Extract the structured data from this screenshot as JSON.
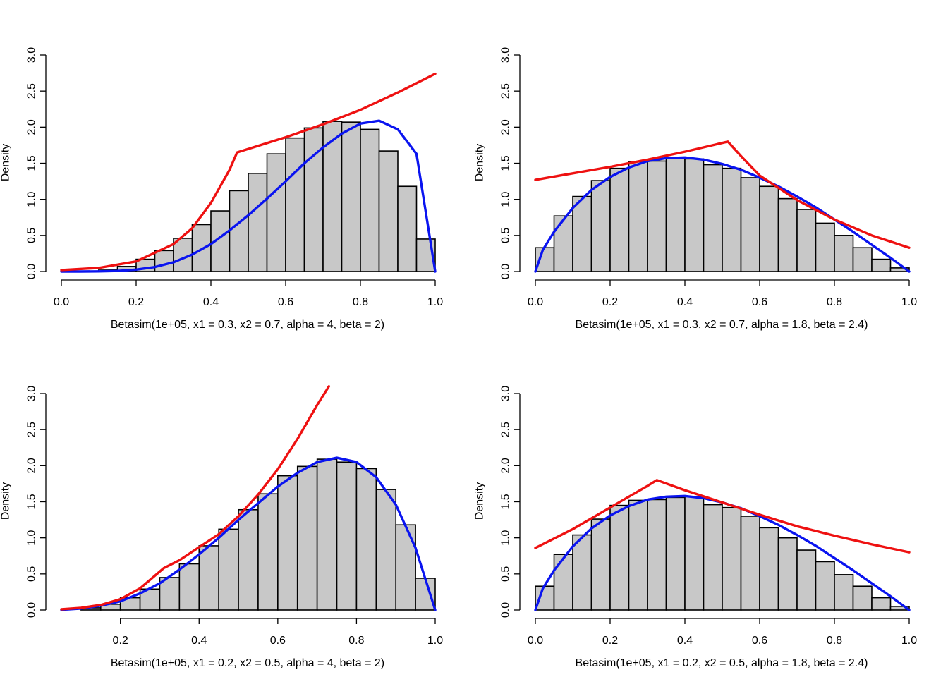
{
  "colors": {
    "bar_fill": "#c8c8c8",
    "bar_stroke": "#000000",
    "envelope_line": "#ee1111",
    "density_line": "#0a14f0"
  },
  "chart_data": [
    {
      "type": "bar",
      "panel": "top-left",
      "xlabel": "Betasim(1e+05, x1 = 0.3, x2 = 0.7, alpha = 4, beta = 2)",
      "ylabel": "Density",
      "xlim": [
        0,
        1
      ],
      "ylim": [
        0,
        3
      ],
      "x_ticks": [
        "0.0",
        "0.2",
        "0.4",
        "0.6",
        "0.8",
        "1.0"
      ],
      "y_ticks": [
        "0.0",
        "0.5",
        "1.0",
        "1.5",
        "2.0",
        "2.5",
        "3.0"
      ],
      "bin_width": 0.05,
      "bin_starts": [
        0.0,
        0.05,
        0.1,
        0.15,
        0.2,
        0.25,
        0.3,
        0.35,
        0.4,
        0.45,
        0.5,
        0.55,
        0.6,
        0.65,
        0.7,
        0.75,
        0.8,
        0.85,
        0.9,
        0.95
      ],
      "values": [
        0.0,
        0.0,
        0.03,
        0.07,
        0.17,
        0.29,
        0.46,
        0.65,
        0.84,
        1.12,
        1.36,
        1.63,
        1.85,
        1.99,
        2.08,
        2.07,
        1.97,
        1.67,
        1.18,
        0.45
      ],
      "series": [
        {
          "role": "density",
          "x": [
            0,
            0.05,
            0.1,
            0.15,
            0.2,
            0.25,
            0.3,
            0.35,
            0.4,
            0.45,
            0.5,
            0.55,
            0.6,
            0.65,
            0.7,
            0.75,
            0.8,
            0.85,
            0.9,
            0.95,
            1.0
          ],
          "y": [
            0,
            0.0001,
            0.002,
            0.008,
            0.026,
            0.062,
            0.128,
            0.235,
            0.38,
            0.57,
            0.78,
            1.01,
            1.25,
            1.5,
            1.72,
            1.91,
            2.05,
            2.09,
            1.97,
            1.63,
            0.0
          ]
        },
        {
          "role": "envelope",
          "x": [
            0,
            0.1,
            0.2,
            0.3,
            0.35,
            0.4,
            0.45,
            0.47,
            0.55,
            0.6,
            0.7,
            0.8,
            0.9,
            1.0
          ],
          "y": [
            0.02,
            0.05,
            0.14,
            0.38,
            0.6,
            0.95,
            1.41,
            1.65,
            1.78,
            1.86,
            2.04,
            2.24,
            2.48,
            2.74
          ]
        }
      ]
    },
    {
      "type": "bar",
      "panel": "top-right",
      "xlabel": "Betasim(1e+05, x1 = 0.3, x2 = 0.7, alpha = 1.8, beta = 2.4)",
      "ylabel": "Density",
      "xlim": [
        0,
        1
      ],
      "ylim": [
        0,
        3
      ],
      "x_ticks": [
        "0.0",
        "0.2",
        "0.4",
        "0.6",
        "0.8",
        "1.0"
      ],
      "y_ticks": [
        "0.0",
        "0.5",
        "1.0",
        "1.5",
        "2.0",
        "2.5",
        "3.0"
      ],
      "bin_width": 0.05,
      "bin_starts": [
        0.0,
        0.05,
        0.1,
        0.15,
        0.2,
        0.25,
        0.3,
        0.35,
        0.4,
        0.45,
        0.5,
        0.55,
        0.6,
        0.65,
        0.7,
        0.75,
        0.8,
        0.85,
        0.9,
        0.95
      ],
      "values": [
        0.33,
        0.77,
        1.04,
        1.26,
        1.43,
        1.52,
        1.53,
        1.58,
        1.56,
        1.48,
        1.43,
        1.3,
        1.18,
        1.01,
        0.86,
        0.67,
        0.5,
        0.33,
        0.17,
        0.05
      ],
      "series": [
        {
          "role": "density",
          "x": [
            0,
            0.02,
            0.05,
            0.1,
            0.15,
            0.2,
            0.25,
            0.3,
            0.35,
            0.4,
            0.45,
            0.5,
            0.55,
            0.6,
            0.65,
            0.7,
            0.75,
            0.8,
            0.85,
            0.9,
            0.95,
            1.0
          ],
          "y": [
            0,
            0.3,
            0.55,
            0.88,
            1.13,
            1.31,
            1.44,
            1.53,
            1.57,
            1.58,
            1.55,
            1.49,
            1.41,
            1.3,
            1.18,
            1.04,
            0.89,
            0.72,
            0.55,
            0.37,
            0.19,
            0.0
          ]
        },
        {
          "role": "envelope",
          "x": [
            0,
            0.1,
            0.2,
            0.3,
            0.4,
            0.515,
            0.55,
            0.6,
            0.7,
            0.8,
            0.9,
            1.0
          ],
          "y": [
            1.27,
            1.36,
            1.45,
            1.55,
            1.66,
            1.8,
            1.6,
            1.33,
            0.99,
            0.72,
            0.5,
            0.33
          ]
        }
      ]
    },
    {
      "type": "bar",
      "panel": "bottom-left",
      "xlabel": "Betasim(1e+05, x1 = 0.2, x2 = 0.5, alpha = 4, beta = 2)",
      "ylabel": "Density",
      "xlim": [
        0.05,
        1
      ],
      "ylim": [
        0,
        3
      ],
      "x_ticks": [
        "0.2",
        "0.4",
        "0.6",
        "0.8",
        "1.0"
      ],
      "y_ticks": [
        "0.0",
        "0.5",
        "1.0",
        "1.5",
        "2.0",
        "2.5",
        "3.0"
      ],
      "bin_width": 0.05,
      "bin_starts": [
        0.1,
        0.15,
        0.2,
        0.25,
        0.3,
        0.35,
        0.4,
        0.45,
        0.5,
        0.55,
        0.6,
        0.65,
        0.7,
        0.75,
        0.8,
        0.85,
        0.9,
        0.95
      ],
      "values": [
        0.03,
        0.08,
        0.17,
        0.29,
        0.45,
        0.64,
        0.89,
        1.12,
        1.39,
        1.61,
        1.86,
        1.99,
        2.09,
        2.05,
        1.96,
        1.67,
        1.18,
        0.44
      ],
      "series": [
        {
          "role": "density",
          "x": [
            0.05,
            0.1,
            0.15,
            0.2,
            0.25,
            0.3,
            0.35,
            0.4,
            0.45,
            0.5,
            0.55,
            0.6,
            0.65,
            0.7,
            0.75,
            0.8,
            0.85,
            0.9,
            0.95,
            1.0
          ],
          "y": [
            0.003,
            0.02,
            0.06,
            0.12,
            0.23,
            0.37,
            0.56,
            0.77,
            1.0,
            1.25,
            1.48,
            1.71,
            1.9,
            2.05,
            2.11,
            2.05,
            1.84,
            1.46,
            0.86,
            0.0
          ]
        },
        {
          "role": "envelope",
          "x": [
            0.05,
            0.1,
            0.15,
            0.2,
            0.25,
            0.31,
            0.35,
            0.4,
            0.45,
            0.5,
            0.55,
            0.6,
            0.65,
            0.7,
            0.73
          ],
          "y": [
            0.01,
            0.03,
            0.07,
            0.15,
            0.3,
            0.58,
            0.69,
            0.87,
            1.05,
            1.3,
            1.6,
            1.95,
            2.37,
            2.84,
            3.1
          ]
        }
      ]
    },
    {
      "type": "bar",
      "panel": "bottom-right",
      "xlabel": "Betasim(1e+05, x1 = 0.2, x2 = 0.5, alpha = 1.8, beta = 2.4)",
      "ylabel": "Density",
      "xlim": [
        0,
        1
      ],
      "ylim": [
        0,
        3
      ],
      "x_ticks": [
        "0.0",
        "0.2",
        "0.4",
        "0.6",
        "0.8",
        "1.0"
      ],
      "y_ticks": [
        "0.0",
        "0.5",
        "1.0",
        "1.5",
        "2.0",
        "2.5",
        "3.0"
      ],
      "bin_width": 0.05,
      "bin_starts": [
        0.0,
        0.05,
        0.1,
        0.15,
        0.2,
        0.25,
        0.3,
        0.35,
        0.4,
        0.45,
        0.5,
        0.55,
        0.6,
        0.65,
        0.7,
        0.75,
        0.8,
        0.85,
        0.9,
        0.95
      ],
      "values": [
        0.33,
        0.77,
        1.04,
        1.26,
        1.45,
        1.52,
        1.53,
        1.56,
        1.57,
        1.46,
        1.42,
        1.3,
        1.14,
        1.0,
        0.83,
        0.67,
        0.49,
        0.33,
        0.17,
        0.05
      ],
      "series": [
        {
          "role": "density",
          "x": [
            0,
            0.02,
            0.05,
            0.1,
            0.15,
            0.2,
            0.25,
            0.3,
            0.35,
            0.4,
            0.45,
            0.5,
            0.55,
            0.6,
            0.65,
            0.7,
            0.75,
            0.8,
            0.85,
            0.9,
            0.95,
            1.0
          ],
          "y": [
            0,
            0.3,
            0.55,
            0.88,
            1.13,
            1.31,
            1.44,
            1.53,
            1.57,
            1.58,
            1.55,
            1.49,
            1.41,
            1.3,
            1.18,
            1.04,
            0.89,
            0.72,
            0.55,
            0.37,
            0.19,
            0.0
          ]
        },
        {
          "role": "envelope",
          "x": [
            0,
            0.1,
            0.2,
            0.3,
            0.325,
            0.4,
            0.5,
            0.6,
            0.7,
            0.8,
            0.9,
            1.0
          ],
          "y": [
            0.86,
            1.12,
            1.42,
            1.72,
            1.8,
            1.66,
            1.49,
            1.32,
            1.16,
            1.03,
            0.91,
            0.8
          ]
        }
      ]
    }
  ]
}
